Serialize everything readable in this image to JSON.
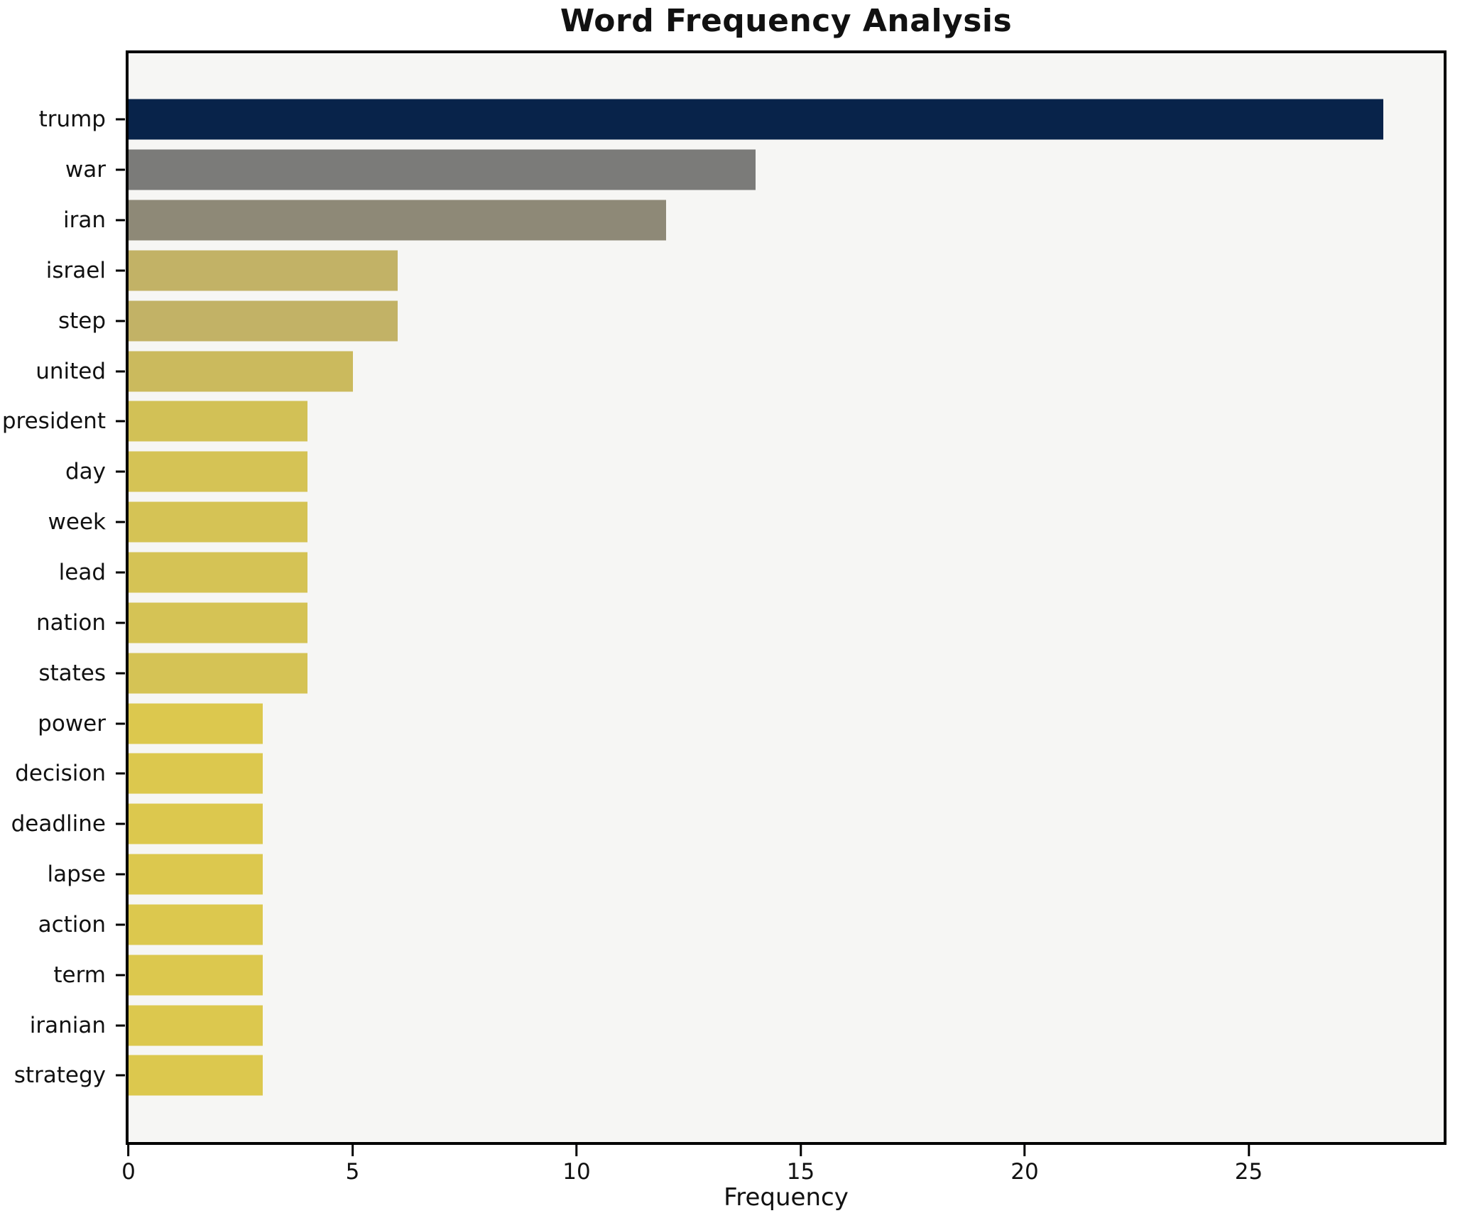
{
  "chart_data": {
    "type": "bar",
    "orientation": "horizontal",
    "title": "Word Frequency Analysis",
    "xlabel": "Frequency",
    "ylabel": "",
    "categories": [
      "trump",
      "war",
      "iran",
      "israel",
      "step",
      "united",
      "president",
      "day",
      "week",
      "lead",
      "nation",
      "states",
      "power",
      "decision",
      "deadline",
      "lapse",
      "action",
      "term",
      "iranian",
      "strategy"
    ],
    "values": [
      28,
      14,
      12,
      6,
      6,
      5,
      4,
      4,
      4,
      4,
      4,
      4,
      3,
      3,
      3,
      3,
      3,
      3,
      3,
      3
    ],
    "bar_colors": [
      "#08234a",
      "#7b7b79",
      "#8e8977",
      "#c2b266",
      "#c2b266",
      "#cbba5d",
      "#d2c156",
      "#d5c355",
      "#d5c355",
      "#d5c355",
      "#d5c355",
      "#d5c355",
      "#dcc84e",
      "#dcc84e",
      "#dcc84e",
      "#dcc84e",
      "#dcc84e",
      "#dcc84e",
      "#dcc84e",
      "#dcc84e"
    ],
    "x_ticks": [
      0,
      5,
      10,
      15,
      20,
      25
    ],
    "xlim": [
      0,
      29.35
    ],
    "grid": false,
    "legend_position": "none",
    "plot_background": "#f6f6f4",
    "figure_background": "#ffffff"
  }
}
